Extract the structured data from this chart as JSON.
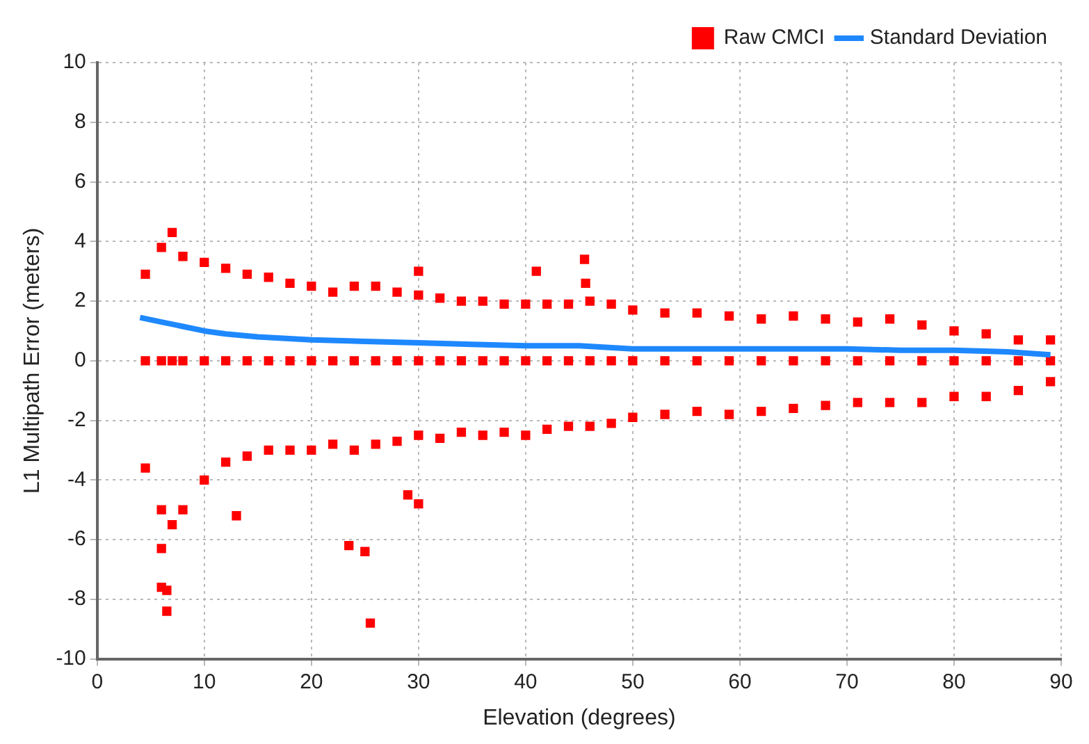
{
  "chart_data": {
    "type": "scatter",
    "xlabel": "Elevation (degrees)",
    "ylabel": "L1 Multipath Error (meters)",
    "xlim": [
      0,
      90
    ],
    "xticks": [
      0,
      10,
      20,
      30,
      40,
      50,
      60,
      70,
      80,
      90
    ],
    "ylim": [
      -10,
      10
    ],
    "yticks": [
      -10,
      -8,
      -6,
      -4,
      -2,
      0,
      2,
      4,
      6,
      8,
      10
    ],
    "grid": true,
    "legend": "top right",
    "series": [
      {
        "name": "Raw CMCI",
        "marker": "square",
        "color": "#ff0000",
        "x": [
          4.5,
          6,
          7,
          8,
          10,
          12,
          14,
          16,
          18,
          20,
          22,
          24,
          26,
          28,
          30,
          32,
          34,
          36,
          38,
          40,
          42,
          44,
          46,
          48,
          50,
          53,
          56,
          59,
          62,
          65,
          68,
          71,
          74,
          77,
          80,
          83,
          86,
          89,
          4.5,
          6,
          7,
          8,
          10,
          12,
          14,
          16,
          18,
          20,
          22,
          24,
          26,
          28,
          30,
          32,
          34,
          36,
          38,
          40,
          42,
          44,
          46,
          48,
          50,
          53,
          56,
          59,
          62,
          65,
          68,
          71,
          74,
          77,
          80,
          83,
          86,
          89,
          4.5,
          6,
          7,
          8,
          10,
          12,
          14,
          16,
          18,
          20,
          22,
          24,
          26,
          28,
          30,
          32,
          34,
          36,
          38,
          40,
          42,
          44,
          46,
          48,
          50,
          53,
          56,
          59,
          62,
          65,
          68,
          71,
          74,
          77,
          80,
          83,
          86,
          89,
          6,
          6.5,
          6.5,
          25.5,
          23.5,
          25,
          45.5,
          45.6,
          41,
          30,
          6,
          13,
          29,
          30
        ],
        "values": [
          2.9,
          3.8,
          4.3,
          3.5,
          3.3,
          3.1,
          2.9,
          2.8,
          2.6,
          2.5,
          2.3,
          2.5,
          2.5,
          2.3,
          2.2,
          2.1,
          2.0,
          2.0,
          1.9,
          1.9,
          1.9,
          1.9,
          2.0,
          1.9,
          1.7,
          1.6,
          1.6,
          1.5,
          1.4,
          1.5,
          1.4,
          1.3,
          1.4,
          1.2,
          1.0,
          0.9,
          0.7,
          0.7,
          -3.6,
          -5.0,
          -5.5,
          -5.0,
          -4.0,
          -3.4,
          -3.2,
          -3.0,
          -3.0,
          -3.0,
          -2.8,
          -3.0,
          -2.8,
          -2.7,
          -2.5,
          -2.6,
          -2.4,
          -2.5,
          -2.4,
          -2.5,
          -2.3,
          -2.2,
          -2.2,
          -2.1,
          -1.9,
          -1.8,
          -1.7,
          -1.8,
          -1.7,
          -1.6,
          -1.5,
          -1.4,
          -1.4,
          -1.4,
          -1.2,
          -1.2,
          -1.0,
          -0.7,
          0,
          0,
          0,
          0,
          0,
          0,
          0,
          0,
          0,
          0,
          0,
          0,
          0,
          0,
          0,
          0,
          0,
          0,
          0,
          0,
          0,
          0,
          0,
          0,
          0,
          0,
          0,
          0,
          0,
          0,
          0,
          0,
          0,
          0,
          0,
          0,
          0,
          0,
          -7.6,
          -7.7,
          -8.4,
          -8.8,
          -6.2,
          -6.4,
          3.4,
          2.6,
          3.0,
          3.0,
          -6.3,
          -5.2,
          -4.5,
          -4.8
        ]
      },
      {
        "name": "Standard Deviation",
        "type": "line",
        "color": "#1e88ff",
        "x": [
          4,
          6,
          8,
          10,
          12,
          15,
          20,
          25,
          30,
          35,
          40,
          45,
          50,
          60,
          70,
          75,
          80,
          85,
          89
        ],
        "values": [
          1.45,
          1.3,
          1.15,
          1.0,
          0.9,
          0.8,
          0.7,
          0.65,
          0.6,
          0.55,
          0.5,
          0.5,
          0.4,
          0.4,
          0.4,
          0.35,
          0.35,
          0.3,
          0.2
        ]
      }
    ]
  }
}
